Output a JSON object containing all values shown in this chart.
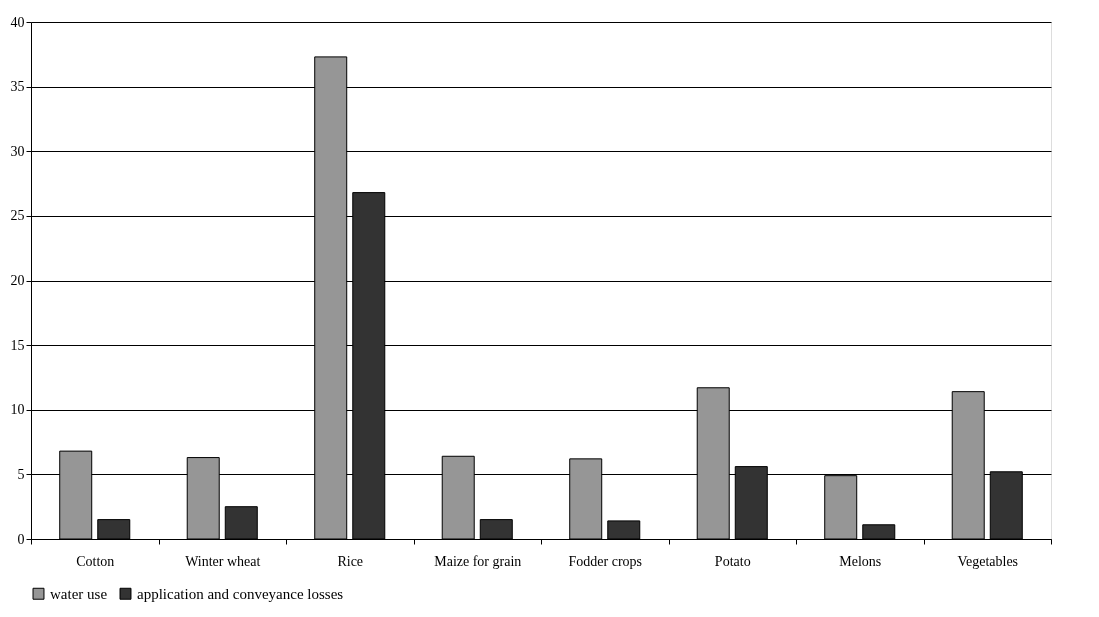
{
  "chart_data": {
    "type": "bar",
    "categories": [
      "Cotton",
      "Winter wheat",
      "Rice",
      "Maize for grain",
      "Fodder crops",
      "Potato",
      "Melons",
      "Vegetables"
    ],
    "series": [
      {
        "name": "water use",
        "color": "#969696",
        "values": [
          6.8,
          6.3,
          37.3,
          6.4,
          6.2,
          11.7,
          4.9,
          11.4
        ]
      },
      {
        "name": "application and conveyance losses",
        "color": "#333333",
        "values": [
          1.5,
          2.5,
          26.8,
          1.5,
          1.4,
          5.6,
          1.1,
          5.2
        ]
      }
    ],
    "ylim": [
      0,
      40
    ],
    "yticks": [
      0,
      5,
      10,
      15,
      20,
      25,
      30,
      35,
      40
    ],
    "grid": "y",
    "legend": "bottom"
  }
}
